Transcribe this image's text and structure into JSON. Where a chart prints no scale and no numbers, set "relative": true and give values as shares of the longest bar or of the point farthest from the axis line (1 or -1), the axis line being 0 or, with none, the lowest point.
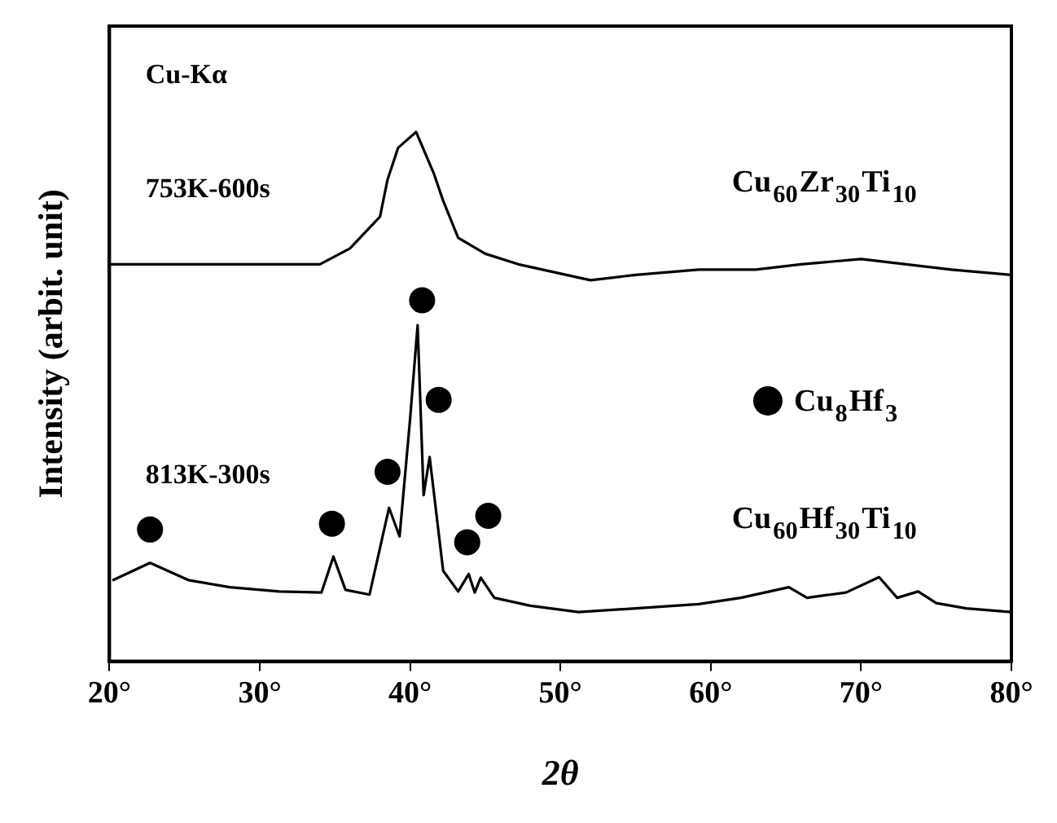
{
  "chart_data": {
    "type": "line",
    "relative": true,
    "xlabel": "2θ",
    "ylabel": "Intensity (arbit. unit)",
    "xlim": [
      20,
      80
    ],
    "xticks": [
      {
        "value": 20,
        "label": "20°"
      },
      {
        "value": 30,
        "label": "30°"
      },
      {
        "value": 40,
        "label": "40°"
      },
      {
        "value": 50,
        "label": "50°"
      },
      {
        "value": 60,
        "label": "60°"
      },
      {
        "value": 70,
        "label": "70°"
      },
      {
        "value": 80,
        "label": "80°"
      }
    ],
    "grid": false,
    "legend": "right",
    "marker": "none",
    "annotations": [
      "Cu-Kα",
      "753K-600s",
      "813K-300s"
    ],
    "series": [
      {
        "name": "Cu$_{60}$Zr$_{30}$Ti$_{10}$",
        "color": "#000000",
        "x": [
          20,
          25,
          30,
          34,
          36,
          38,
          38.5,
          39.2,
          40.4,
          41.6,
          42.2,
          43.2,
          45,
          47.2,
          52,
          55,
          59.2,
          63,
          66,
          70,
          73,
          76,
          80
        ],
        "values": [
          0.75,
          0.75,
          0.75,
          0.75,
          0.78,
          0.84,
          0.91,
          0.97,
          1.0,
          0.92,
          0.87,
          0.8,
          0.77,
          0.75,
          0.72,
          0.73,
          0.74,
          0.74,
          0.75,
          0.76,
          0.75,
          0.74,
          0.73
        ]
      },
      {
        "name": "Cu$_{60}$Hf$_{30}$Ti$_{10}$",
        "color": "#000000",
        "x": [
          20.2,
          22.7,
          25.3,
          28,
          31.3,
          34.1,
          34.9,
          35.7,
          37.3,
          38.6,
          39.3,
          40,
          40.5,
          40.9,
          41.3,
          42.2,
          43.2,
          43.9,
          44.3,
          44.7,
          45.6,
          48,
          51.2,
          55,
          59.2,
          62,
          65.2,
          66.4,
          69,
          71.2,
          72.4,
          73.8,
          75,
          77,
          80
        ],
        "values": [
          0.153,
          0.186,
          0.153,
          0.14,
          0.132,
          0.13,
          0.198,
          0.135,
          0.126,
          0.29,
          0.236,
          0.458,
          0.635,
          0.314,
          0.386,
          0.171,
          0.132,
          0.165,
          0.13,
          0.158,
          0.12,
          0.105,
          0.093,
          0.1,
          0.108,
          0.12,
          0.14,
          0.12,
          0.13,
          0.159,
          0.12,
          0.132,
          0.11,
          0.1,
          0.093
        ]
      },
      {
        "name": "Cu$_{8}$Hf$_{3}$",
        "type": "scatter",
        "marker": "circle",
        "color": "#000000",
        "x": [
          22.7,
          34.8,
          38.5,
          40.8,
          41.9,
          43.8,
          45.2
        ],
        "values": [
          0.249,
          0.26,
          0.358,
          0.682,
          0.494,
          0.225,
          0.275
        ]
      }
    ]
  }
}
